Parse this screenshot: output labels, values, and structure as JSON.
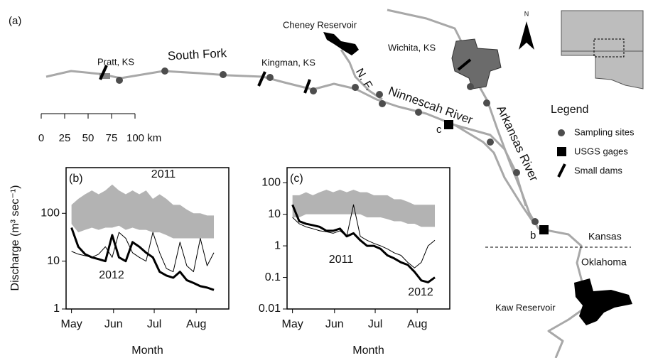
{
  "map": {
    "panel_label": "(a)",
    "labels": {
      "cheney": "Cheney Reservoir",
      "wichita": "Wichita, KS",
      "pratt": "Pratt, KS",
      "south_fork": "South Fork",
      "kingman": "Kingman, KS",
      "north_fork": "N. F.",
      "ninnescah": "Ninnescah River",
      "arkansas": "Arkansas River",
      "kansas": "Kansas",
      "oklahoma": "Oklahoma",
      "kaw": "Kaw Reservoir",
      "gage_c": "c",
      "gage_b": "b",
      "north": "N"
    },
    "scale_bar": [
      "0",
      "25",
      "50",
      "75",
      "100 km"
    ],
    "legend": {
      "title": "Legend",
      "items": [
        "Sampling sites",
        "USGS gages",
        "Small dams"
      ]
    },
    "discharge_label": "Discharge (m³ sec⁻¹)"
  },
  "chart_data": [
    {
      "type": "line",
      "panel_label": "(b)",
      "xlabel": "Month",
      "log_y": true,
      "x": [
        0,
        5,
        10,
        15,
        20,
        25,
        30,
        35,
        40,
        45,
        50,
        55,
        60,
        65,
        70,
        75,
        80,
        85,
        90,
        95,
        100,
        105
      ],
      "xlim": [
        -4,
        116
      ],
      "xticks": [
        {
          "value": 0,
          "label": "May"
        },
        {
          "value": 31,
          "label": "Jun"
        },
        {
          "value": 61,
          "label": "Jul"
        },
        {
          "value": 92,
          "label": "Aug"
        }
      ],
      "ylim": [
        1,
        900
      ],
      "yticks": [
        1,
        10,
        100
      ],
      "band": {
        "color": "#b3b3b3",
        "lower": [
          60,
          40,
          45,
          50,
          45,
          50,
          50,
          55,
          45,
          50,
          45,
          45,
          40,
          40,
          35,
          30,
          30,
          30,
          30,
          30,
          30,
          30
        ],
        "upper": [
          150,
          200,
          250,
          300,
          250,
          300,
          400,
          300,
          250,
          300,
          250,
          300,
          200,
          250,
          200,
          150,
          150,
          120,
          100,
          100,
          90,
          90
        ]
      },
      "series": [
        {
          "name": "2011",
          "color": "#000000",
          "width": 1,
          "values": [
            16,
            14,
            13,
            12,
            14,
            20,
            12,
            40,
            30,
            15,
            12,
            10,
            40,
            15,
            7,
            6,
            25,
            8,
            6,
            30,
            8,
            15
          ]
        },
        {
          "name": "2012",
          "color": "#000000",
          "width": 3,
          "values": [
            50,
            20,
            14,
            12,
            11,
            10,
            35,
            12,
            10,
            25,
            20,
            15,
            12,
            6,
            5,
            4.5,
            6,
            4,
            3.5,
            3,
            2.8,
            2.5
          ]
        }
      ]
    },
    {
      "type": "line",
      "panel_label": "(c)",
      "xlabel": "Month",
      "log_y": true,
      "x": [
        0,
        5,
        10,
        15,
        20,
        25,
        30,
        35,
        40,
        45,
        50,
        55,
        60,
        65,
        70,
        75,
        80,
        85,
        90,
        95,
        100,
        105
      ],
      "xlim": [
        -4,
        116
      ],
      "xticks": [
        {
          "value": 0,
          "label": "May"
        },
        {
          "value": 31,
          "label": "Jun"
        },
        {
          "value": 61,
          "label": "Jul"
        },
        {
          "value": 92,
          "label": "Aug"
        }
      ],
      "ylim": [
        0.01,
        300
      ],
      "yticks": [
        0.01,
        0.1,
        1,
        10,
        100
      ],
      "band": {
        "color": "#b3b3b3",
        "lower": [
          8,
          8,
          10,
          10,
          10,
          10,
          10,
          10,
          10,
          10,
          10,
          8,
          8,
          8,
          7,
          6,
          6,
          5,
          5,
          4,
          4,
          4
        ],
        "upper": [
          40,
          40,
          50,
          40,
          50,
          60,
          50,
          60,
          50,
          60,
          50,
          50,
          40,
          40,
          40,
          30,
          30,
          25,
          20,
          20,
          20,
          20
        ]
      },
      "series": [
        {
          "name": "2011",
          "color": "#000000",
          "width": 1,
          "values": [
            8,
            5,
            4,
            3.5,
            3,
            2.8,
            2.5,
            3,
            2,
            20,
            2,
            1.5,
            1.2,
            1,
            0.8,
            0.6,
            0.5,
            0.3,
            0.2,
            0.3,
            1,
            1.5
          ]
        },
        {
          "name": "2012",
          "color": "#000000",
          "width": 3,
          "values": [
            20,
            6,
            5,
            4.5,
            4,
            3,
            3,
            3.5,
            2,
            2.5,
            1.5,
            1,
            1,
            0.8,
            0.5,
            0.4,
            0.3,
            0.25,
            0.15,
            0.08,
            0.07,
            0.1
          ]
        }
      ]
    }
  ]
}
